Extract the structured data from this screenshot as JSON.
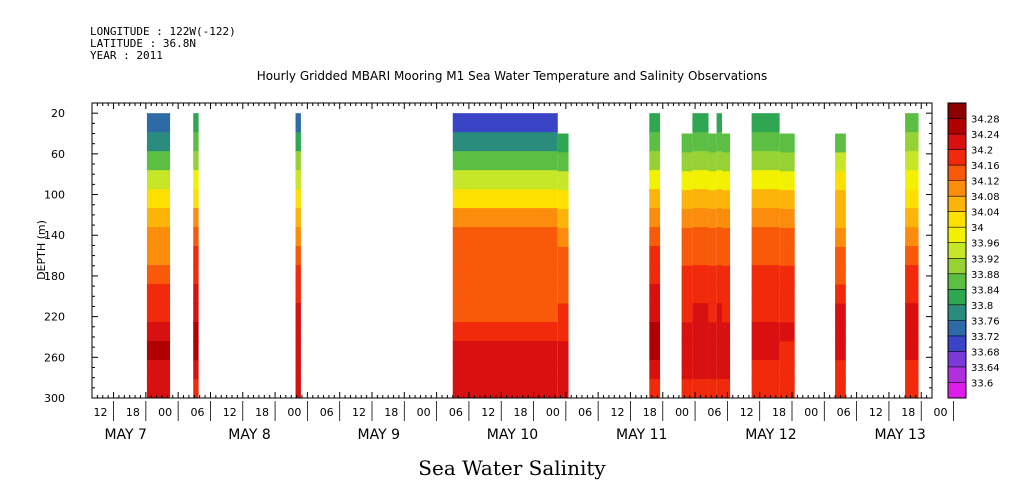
{
  "header": {
    "longitude": "LONGITUDE : 122W(-122)",
    "latitude": "LATITUDE : 36.8N",
    "year": "YEAR : 2011"
  },
  "chart_data": {
    "type": "heatmap",
    "title": "Hourly Gridded MBARI Mooring M1 Sea Water Temperature and Salinity Observations",
    "ylabel": "DEPTH (m)",
    "variable_label": "Sea Water Salinity",
    "y_range": [
      300,
      10
    ],
    "y_ticks": [
      20,
      60,
      100,
      140,
      180,
      220,
      260,
      300
    ],
    "x_range_hours": [
      8,
      164
    ],
    "x_hour_labels": [
      "12",
      "18",
      "00",
      "06",
      "12",
      "18",
      "00",
      "06",
      "12",
      "18",
      "00",
      "06",
      "12",
      "18",
      "00",
      "06",
      "12",
      "18",
      "00",
      "06",
      "12",
      "18",
      "00",
      "06",
      "12",
      "18",
      "00"
    ],
    "x_hour_values": [
      12,
      18,
      24,
      30,
      36,
      42,
      48,
      54,
      60,
      66,
      72,
      78,
      84,
      90,
      96,
      102,
      108,
      114,
      120,
      126,
      132,
      138,
      144,
      150,
      156,
      162,
      168
    ],
    "day_labels": [
      {
        "text": "MAY  7",
        "hour": 10.5
      },
      {
        "text": "MAY  8",
        "hour": 33.5
      },
      {
        "text": "MAY  9",
        "hour": 57.5
      },
      {
        "text": "MAY 10",
        "hour": 81.5
      },
      {
        "text": "MAY 11",
        "hour": 105.5
      },
      {
        "text": "MAY 12",
        "hour": 129.5
      },
      {
        "text": "MAY 13",
        "hour": 153.5
      }
    ],
    "colorbar": {
      "levels": [
        "34.28",
        "34.24",
        "34.2",
        "34.16",
        "34.12",
        "34.08",
        "34.04",
        "34",
        "33.96",
        "33.92",
        "33.88",
        "33.84",
        "33.8",
        "33.76",
        "33.72",
        "33.68",
        "33.64",
        "33.6"
      ],
      "colors": [
        "#8b0000",
        "#b00000",
        "#d81010",
        "#f02a0a",
        "#f85a0a",
        "#fb8c0c",
        "#fcb408",
        "#fde000",
        "#f2f200",
        "#c6e628",
        "#96d234",
        "#5cbf44",
        "#2fa652",
        "#2a8c7c",
        "#2e6aa6",
        "#3a44c6",
        "#7a3ad8",
        "#b030e0",
        "#dd1ee8"
      ]
    },
    "series": [
      {
        "start": 18.2,
        "end": 22.5,
        "top": 20,
        "bottom": 300,
        "profile": [
          33.73,
          33.78,
          33.84,
          33.94,
          34.02,
          34.06,
          34.08,
          34.11,
          34.14,
          34.16,
          34.19,
          34.22,
          34.24,
          34.22,
          34.2
        ]
      },
      {
        "start": 26.8,
        "end": 27.8,
        "top": 20,
        "bottom": 300,
        "profile": [
          33.82,
          33.86,
          33.9,
          33.97,
          34.02,
          34.08,
          34.12,
          34.16,
          34.18,
          34.2,
          34.22,
          34.25,
          34.26,
          34.2,
          34.18
        ]
      },
      {
        "start": 45.8,
        "end": 46.8,
        "top": 20,
        "bottom": 300,
        "profile": [
          33.74,
          33.8,
          33.88,
          33.95,
          34.0,
          34.06,
          34.1,
          34.14,
          34.16,
          34.18,
          34.2,
          34.22,
          34.23,
          34.21,
          34.2
        ]
      },
      {
        "start": 75.0,
        "end": 94.5,
        "top": 20,
        "bottom": 300,
        "profile": [
          33.7,
          33.77,
          33.85,
          33.95,
          34.03,
          34.08,
          34.12,
          34.15,
          34.15,
          34.13,
          34.15,
          34.18,
          34.2,
          34.22,
          34.21
        ]
      },
      {
        "start": 94.5,
        "end": 96.5,
        "top": 40,
        "bottom": 300,
        "profile": [
          33.8,
          33.86,
          33.94,
          34.02,
          34.07,
          34.1,
          34.13,
          34.14,
          34.14,
          34.16,
          34.18,
          34.2,
          34.22,
          34.2
        ]
      },
      {
        "start": 111.5,
        "end": 113.5,
        "top": 20,
        "bottom": 300,
        "profile": [
          33.82,
          33.86,
          33.9,
          33.98,
          34.04,
          34.09,
          34.13,
          34.16,
          34.18,
          34.2,
          34.23,
          34.25,
          34.24,
          34.2,
          34.19
        ]
      },
      {
        "start": 117.5,
        "end": 119.5,
        "top": 40,
        "bottom": 300,
        "profile": [
          33.84,
          33.9,
          33.98,
          34.05,
          34.09,
          34.12,
          34.14,
          34.16,
          34.17,
          34.19,
          34.2,
          34.22,
          34.2,
          34.18
        ]
      },
      {
        "start": 119.5,
        "end": 122.5,
        "top": 20,
        "bottom": 300,
        "profile": [
          33.82,
          33.85,
          33.9,
          33.98,
          34.05,
          34.1,
          34.12,
          34.14,
          34.16,
          34.18,
          34.2,
          34.21,
          34.22,
          34.2,
          34.18
        ]
      },
      {
        "start": 122.5,
        "end": 124.0,
        "top": 40,
        "bottom": 300,
        "profile": [
          33.84,
          33.9,
          33.98,
          34.05,
          34.09,
          34.12,
          34.14,
          34.16,
          34.17,
          34.19,
          34.2,
          34.22,
          34.2,
          34.18
        ]
      },
      {
        "start": 124.0,
        "end": 125.0,
        "top": 20,
        "bottom": 300,
        "profile": [
          33.82,
          33.85,
          33.9,
          33.98,
          34.05,
          34.1,
          34.12,
          34.14,
          34.16,
          34.18,
          34.2,
          34.21,
          34.22,
          34.2,
          34.18
        ]
      },
      {
        "start": 125.0,
        "end": 126.5,
        "top": 40,
        "bottom": 300,
        "profile": [
          33.84,
          33.9,
          33.98,
          34.05,
          34.09,
          34.12,
          34.14,
          34.16,
          34.17,
          34.19,
          34.2,
          34.22,
          34.2,
          34.18
        ]
      },
      {
        "start": 130.5,
        "end": 135.7,
        "top": 20,
        "bottom": 300,
        "profile": [
          33.82,
          33.85,
          33.9,
          33.98,
          34.05,
          34.1,
          34.12,
          34.14,
          34.16,
          34.17,
          34.19,
          34.21,
          34.2,
          34.18,
          34.17
        ]
      },
      {
        "start": 135.7,
        "end": 138.5,
        "top": 40,
        "bottom": 300,
        "profile": [
          33.84,
          33.9,
          33.98,
          34.05,
          34.09,
          34.12,
          34.14,
          34.16,
          34.17,
          34.19,
          34.2,
          34.19,
          34.17,
          34.16
        ]
      },
      {
        "start": 146.0,
        "end": 148.0,
        "top": 40,
        "bottom": 300,
        "profile": [
          33.86,
          33.92,
          34.0,
          34.04,
          34.07,
          34.1,
          34.13,
          34.15,
          34.17,
          34.2,
          34.22,
          34.2,
          34.18,
          34.17
        ]
      },
      {
        "start": 159.0,
        "end": 161.5,
        "top": 20,
        "bottom": 300,
        "profile": [
          33.86,
          33.9,
          33.94,
          33.98,
          34.02,
          34.06,
          34.1,
          34.14,
          34.16,
          34.18,
          34.2,
          34.22,
          34.2,
          34.18,
          34.17
        ]
      }
    ]
  }
}
